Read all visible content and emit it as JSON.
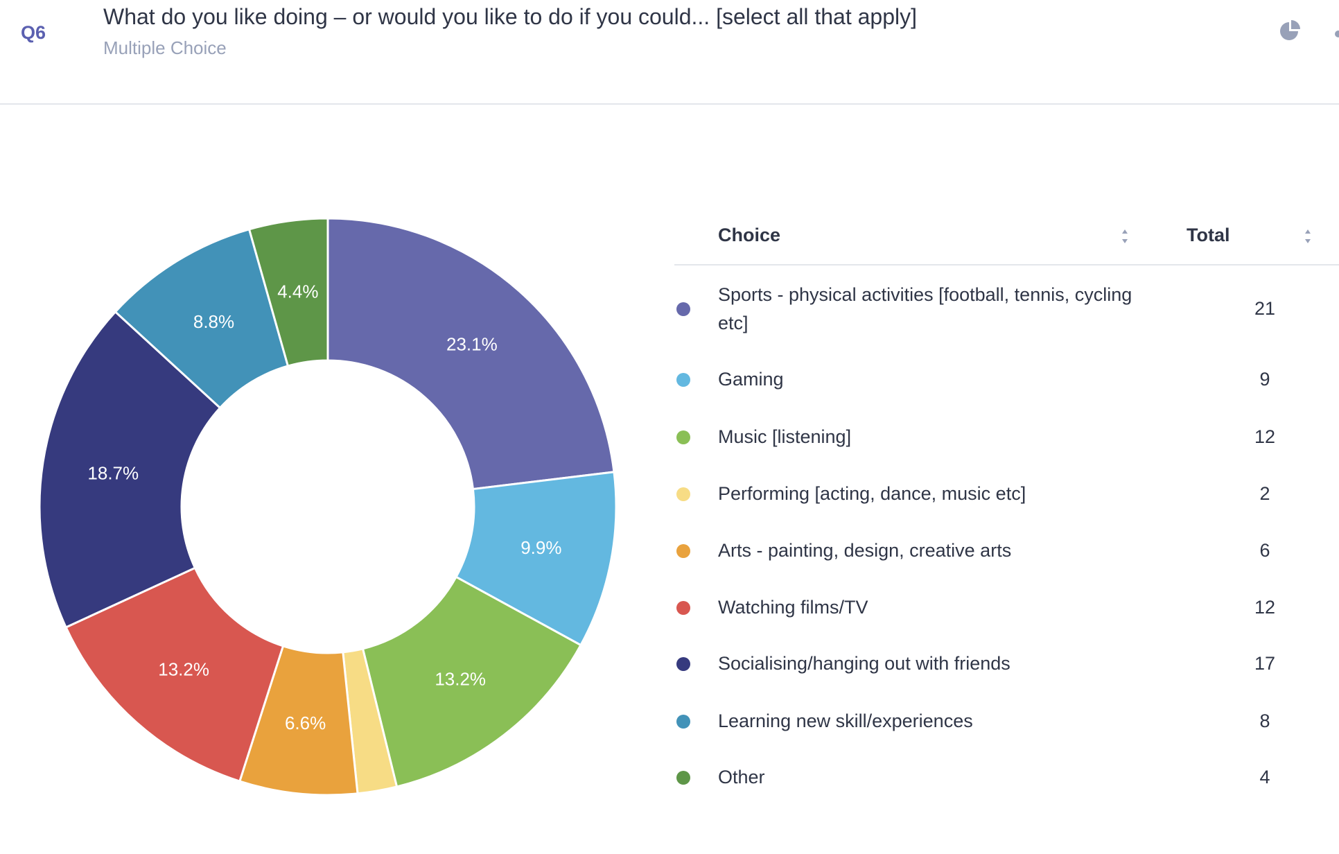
{
  "question": {
    "number": "Q6",
    "title": "What do you like doing – or would you like to do if you could... [select all that apply]",
    "type": "Multiple Choice"
  },
  "icons": {
    "chart_type": "pie-chart-icon",
    "sort": "sort-icon"
  },
  "table": {
    "headers": {
      "choice": "Choice",
      "total": "Total"
    }
  },
  "chart_data": {
    "type": "pie",
    "variant": "donut",
    "title": "",
    "categories": [
      "Sports - physical activities [football, tennis, cycling etc]",
      "Gaming",
      "Music [listening]",
      "Performing [acting, dance, music etc]",
      "Arts - painting, design, creative arts",
      "Watching films/TV",
      "Socialising/hanging out with friends",
      "Learning new skill/experiences",
      "Other"
    ],
    "values": [
      21,
      9,
      12,
      2,
      6,
      12,
      17,
      8,
      4
    ],
    "labels": [
      "23.1%",
      "9.9%",
      "13.2%",
      "",
      "6.6%",
      "13.2%",
      "18.7%",
      "8.8%",
      "4.4%"
    ],
    "colors": [
      "#6669ab",
      "#63b8e0",
      "#8abf56",
      "#f7dc85",
      "#e9a23d",
      "#d85750",
      "#363a7e",
      "#4292b8",
      "#5e9648"
    ],
    "legend": "right-table"
  }
}
